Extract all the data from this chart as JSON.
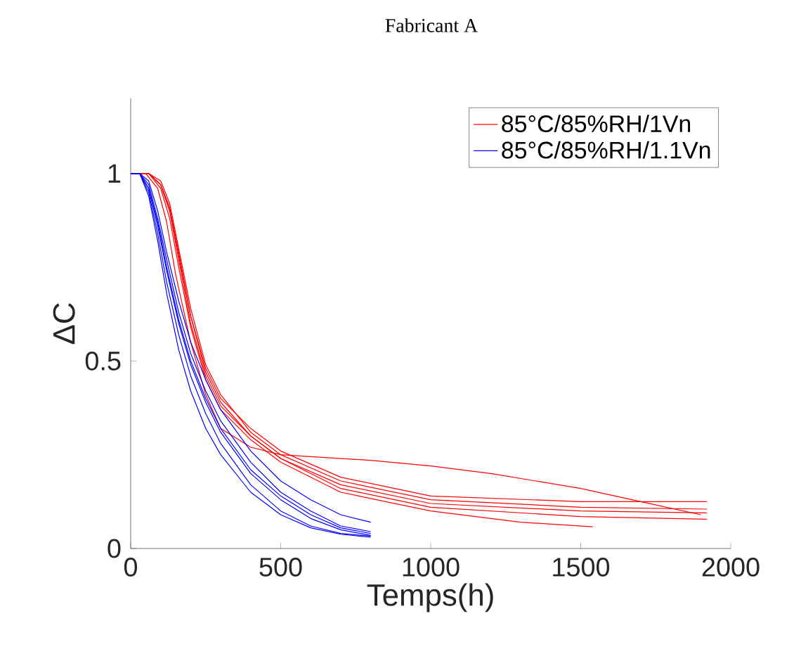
{
  "chart_data": {
    "type": "line",
    "title": "Fabricant A",
    "xlabel": "Temps(h)",
    "ylabel": "ΔC",
    "xlim": [
      0,
      2000
    ],
    "ylim": [
      0,
      1.2
    ],
    "xticks": [
      0,
      500,
      1000,
      1500,
      2000
    ],
    "yticks": [
      0,
      0.5,
      1
    ],
    "legend": "top right",
    "grid": false,
    "marker": "none",
    "line_style": "solid",
    "series": [
      {
        "name": "85°C/85%RH/1Vn",
        "color": "#ff0000",
        "x": [
          0,
          60,
          100,
          130,
          160,
          200,
          250,
          300,
          400,
          500,
          700,
          1000,
          1500,
          1920
        ],
        "values": [
          1,
          1,
          0.97,
          0.9,
          0.78,
          0.62,
          0.48,
          0.4,
          0.32,
          0.26,
          0.19,
          0.14,
          0.125,
          0.125
        ]
      },
      {
        "color": "#ff0000",
        "x": [
          0,
          60,
          100,
          130,
          160,
          200,
          250,
          300,
          400,
          500,
          700,
          1000,
          1500,
          1920
        ],
        "values": [
          1,
          1,
          0.98,
          0.92,
          0.8,
          0.64,
          0.49,
          0.41,
          0.31,
          0.25,
          0.18,
          0.13,
          0.11,
          0.105
        ]
      },
      {
        "color": "#ff0000",
        "x": [
          0,
          60,
          100,
          130,
          160,
          200,
          250,
          300,
          400,
          500,
          700,
          1000,
          1500,
          1920
        ],
        "values": [
          1,
          1,
          0.97,
          0.9,
          0.77,
          0.6,
          0.46,
          0.38,
          0.3,
          0.24,
          0.16,
          0.11,
          0.085,
          0.078
        ]
      },
      {
        "color": "#ff0000",
        "x": [
          0,
          60,
          100,
          130,
          160,
          200,
          250,
          300,
          400,
          500,
          700,
          1000,
          1300,
          1540
        ],
        "values": [
          1,
          1,
          0.96,
          0.88,
          0.75,
          0.59,
          0.45,
          0.37,
          0.29,
          0.23,
          0.15,
          0.1,
          0.07,
          0.058
        ]
      },
      {
        "color": "#ff0000",
        "x": [
          0,
          50,
          90,
          120,
          150,
          200,
          250,
          300,
          400,
          500,
          600,
          800,
          1000,
          1200,
          1500,
          1700,
          1900
        ],
        "values": [
          1,
          1,
          0.96,
          0.87,
          0.73,
          0.55,
          0.41,
          0.32,
          0.27,
          0.25,
          0.245,
          0.235,
          0.22,
          0.2,
          0.16,
          0.125,
          0.09
        ]
      },
      {
        "color": "#ff0000",
        "x": [
          0,
          60,
          100,
          130,
          160,
          200,
          250,
          300,
          400,
          500,
          700,
          1000,
          1500,
          1920
        ],
        "values": [
          1,
          1,
          0.97,
          0.91,
          0.79,
          0.62,
          0.47,
          0.39,
          0.3,
          0.24,
          0.17,
          0.12,
          0.1,
          0.095
        ]
      },
      {
        "name": "85°C/85%RH/1.1Vn",
        "color": "#0000ff",
        "x": [
          0,
          30,
          60,
          90,
          120,
          160,
          200,
          250,
          300,
          400,
          500,
          600,
          700,
          800
        ],
        "values": [
          1,
          1,
          0.96,
          0.86,
          0.74,
          0.6,
          0.49,
          0.39,
          0.31,
          0.2,
          0.13,
          0.08,
          0.05,
          0.035
        ]
      },
      {
        "color": "#0000ff",
        "x": [
          0,
          30,
          60,
          90,
          120,
          160,
          200,
          250,
          300,
          400,
          500,
          600,
          700,
          800
        ],
        "values": [
          1,
          1,
          0.95,
          0.84,
          0.71,
          0.57,
          0.46,
          0.36,
          0.28,
          0.17,
          0.1,
          0.06,
          0.04,
          0.033
        ]
      },
      {
        "color": "#0000ff",
        "x": [
          0,
          30,
          60,
          90,
          120,
          160,
          200,
          250,
          300,
          400,
          500,
          600,
          700,
          800
        ],
        "values": [
          1,
          1,
          0.97,
          0.88,
          0.77,
          0.63,
          0.52,
          0.42,
          0.34,
          0.23,
          0.15,
          0.1,
          0.06,
          0.045
        ]
      },
      {
        "color": "#0000ff",
        "x": [
          0,
          30,
          60,
          90,
          120,
          160,
          200,
          250,
          300,
          400,
          500,
          600,
          700,
          800
        ],
        "values": [
          1,
          1,
          0.98,
          0.9,
          0.79,
          0.66,
          0.55,
          0.45,
          0.37,
          0.26,
          0.18,
          0.13,
          0.09,
          0.07
        ]
      },
      {
        "color": "#0000ff",
        "x": [
          0,
          30,
          60,
          90,
          120,
          160,
          200,
          250,
          300,
          400,
          500,
          600,
          700,
          800
        ],
        "values": [
          1,
          1,
          0.96,
          0.87,
          0.75,
          0.61,
          0.5,
          0.4,
          0.32,
          0.21,
          0.14,
          0.09,
          0.055,
          0.04
        ]
      },
      {
        "color": "#0000ff",
        "x": [
          0,
          30,
          60,
          90,
          120,
          160,
          200,
          250,
          300,
          400,
          500,
          600,
          700,
          800
        ],
        "values": [
          1,
          1,
          0.94,
          0.82,
          0.68,
          0.53,
          0.42,
          0.32,
          0.25,
          0.15,
          0.09,
          0.055,
          0.038,
          0.03
        ]
      }
    ]
  }
}
